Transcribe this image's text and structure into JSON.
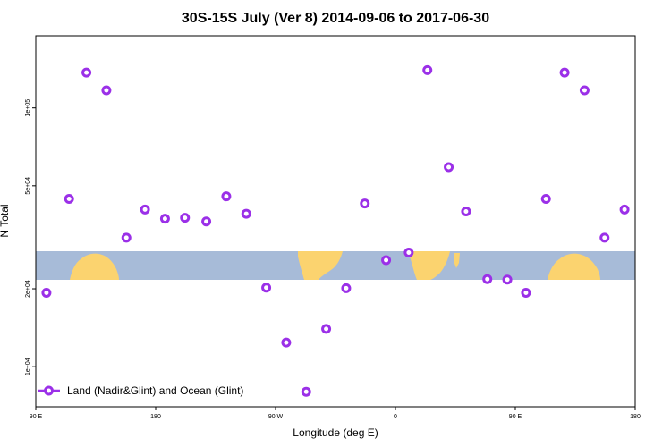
{
  "chart_data": {
    "type": "scatter",
    "title": "30S-15S July (Ver 8)   2014-09-06 to 2017-06-30",
    "xlabel": "Longitude (deg E)",
    "ylabel": "N Total",
    "y_scale": "log",
    "xlim": [
      90,
      540
    ],
    "ylim": [
      7000,
      190000
    ],
    "x_ticks": [
      {
        "value": 90,
        "label": "90 E"
      },
      {
        "value": 180,
        "label": "180"
      },
      {
        "value": 270,
        "label": "90 W"
      },
      {
        "value": 360,
        "label": "0"
      },
      {
        "value": 450,
        "label": "90 E"
      },
      {
        "value": 540,
        "label": "180"
      }
    ],
    "y_ticks": [
      {
        "value": 10000,
        "label": "1e+04"
      },
      {
        "value": 20000,
        "label": "2e+04"
      },
      {
        "value": 50000,
        "label": "5e+04"
      },
      {
        "value": 100000,
        "label": "1e+05"
      }
    ],
    "grid": false,
    "legend_position": "bottom-left",
    "series": [
      {
        "name": "Land (Nadir&Glint) and Ocean (Glint)",
        "color": "#9b30e8",
        "points": [
          {
            "x": 98,
            "y": 19300
          },
          {
            "x": 115,
            "y": 44500
          },
          {
            "x": 128,
            "y": 137000
          },
          {
            "x": 143,
            "y": 117000
          },
          {
            "x": 158,
            "y": 31500
          },
          {
            "x": 172,
            "y": 40500
          },
          {
            "x": 187,
            "y": 37300
          },
          {
            "x": 202,
            "y": 37600
          },
          {
            "x": 218,
            "y": 36400
          },
          {
            "x": 233,
            "y": 45500
          },
          {
            "x": 248,
            "y": 39000
          },
          {
            "x": 263,
            "y": 20200
          },
          {
            "x": 278,
            "y": 12400
          },
          {
            "x": 293,
            "y": 8000
          },
          {
            "x": 308,
            "y": 14000
          },
          {
            "x": 323,
            "y": 20100
          },
          {
            "x": 337,
            "y": 42700
          },
          {
            "x": 353,
            "y": 25800
          },
          {
            "x": 370,
            "y": 27600
          },
          {
            "x": 384,
            "y": 140000
          },
          {
            "x": 400,
            "y": 59000
          },
          {
            "x": 413,
            "y": 39800
          },
          {
            "x": 429,
            "y": 21800
          },
          {
            "x": 444,
            "y": 21700
          },
          {
            "x": 458,
            "y": 19300
          },
          {
            "x": 473,
            "y": 44500
          },
          {
            "x": 487,
            "y": 137000
          },
          {
            "x": 502,
            "y": 117000
          },
          {
            "x": 517,
            "y": 31500
          },
          {
            "x": 532,
            "y": 40500
          }
        ]
      }
    ]
  }
}
